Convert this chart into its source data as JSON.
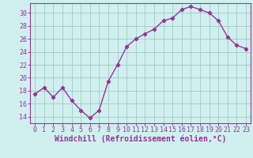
{
  "x": [
    0,
    1,
    2,
    3,
    4,
    5,
    6,
    7,
    8,
    9,
    10,
    11,
    12,
    13,
    14,
    15,
    16,
    17,
    18,
    19,
    20,
    21,
    22,
    23
  ],
  "y": [
    17.5,
    18.5,
    17.0,
    18.5,
    16.5,
    15.0,
    13.8,
    15.0,
    19.5,
    22.0,
    24.8,
    26.0,
    26.8,
    27.5,
    28.8,
    29.2,
    30.5,
    31.0,
    30.5,
    30.0,
    28.8,
    26.3,
    25.0,
    24.5
  ],
  "line_color": "#993399",
  "marker": "P",
  "bg_color": "#cff0ee",
  "grid_color": "#aacccc",
  "xlabel": "Windchill (Refroidissement éolien,°C)",
  "xlabel_color": "#993399",
  "tick_color": "#993399",
  "xlim": [
    -0.5,
    23.5
  ],
  "ylim": [
    13.0,
    31.5
  ],
  "yticks": [
    14,
    16,
    18,
    20,
    22,
    24,
    26,
    28,
    30
  ],
  "xticks": [
    0,
    1,
    2,
    3,
    4,
    5,
    6,
    7,
    8,
    9,
    10,
    11,
    12,
    13,
    14,
    15,
    16,
    17,
    18,
    19,
    20,
    21,
    22,
    23
  ],
  "xtick_labels": [
    "0",
    "1",
    "2",
    "3",
    "4",
    "5",
    "6",
    "7",
    "8",
    "9",
    "10",
    "11",
    "12",
    "13",
    "14",
    "15",
    "16",
    "17",
    "18",
    "19",
    "20",
    "21",
    "22",
    "23"
  ],
  "ytick_labels": [
    "14",
    "16",
    "18",
    "20",
    "22",
    "24",
    "26",
    "28",
    "30"
  ],
  "font_size": 6,
  "xlabel_fontsize": 7,
  "marker_size": 3,
  "linewidth": 1.0
}
